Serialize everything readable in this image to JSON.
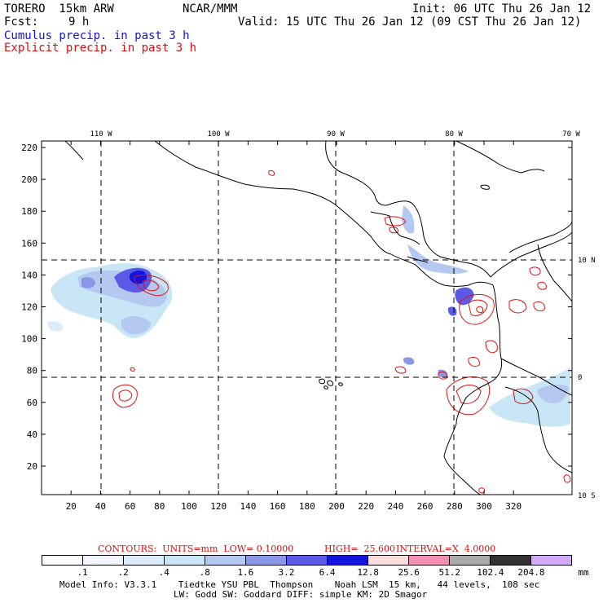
{
  "header": {
    "model_name": "TORERO  15km ARW",
    "org": "NCAR/MMM",
    "init": "Init: 06 UTC Thu 26 Jan 12",
    "fcst_label": "Fcst:",
    "fcst_value": "9 h",
    "valid": "Valid: 15 UTC Thu 26 Jan 12 (09 CST Thu 26 Jan 12)",
    "field1": "Cumulus precip. in past 3 h",
    "field2": "Explicit precip. in past 3 h"
  },
  "colors": {
    "field1": "#1414c8",
    "field2": "#e01010",
    "gridline": "#000000",
    "coast": "#000000"
  },
  "map": {
    "lon_labels": [
      "110 W",
      "100 W",
      "90 W",
      "80 W",
      "70 W"
    ],
    "lat_labels": [
      "10 N",
      "0",
      "10 S"
    ],
    "x_ticks": [
      "20",
      "40",
      "60",
      "80",
      "100",
      "120",
      "140",
      "160",
      "180",
      "200",
      "220",
      "240",
      "260",
      "280",
      "300",
      "320"
    ],
    "y_ticks": [
      "220",
      "200",
      "180",
      "160",
      "140",
      "120",
      "100",
      "80",
      "60",
      "40",
      "20"
    ]
  },
  "contour_info": {
    "units": "CONTOURS:  UNITS=mm  LOW= 0.10000",
    "high": "HIGH=  25.600",
    "interval": "INTERVAL=X  4.0000"
  },
  "colorbar": {
    "unit": "mm",
    "labels": [
      ".1",
      ".2",
      ".4",
      ".8",
      "1.6",
      "3.2",
      "6.4",
      "12.8",
      "25.6",
      "51.2",
      "102.4",
      "204.8"
    ],
    "colors": [
      "#ffffff",
      "#f0f5ff",
      "#dcebfa",
      "#c8e6f5",
      "#b4c8f0",
      "#8c96e6",
      "#5a5ae6",
      "#1414dc",
      "#fadcdc",
      "#f090b4",
      "#aaaaaa",
      "#323232",
      "#d2aaf5"
    ]
  },
  "footer": {
    "line1": "Model Info: V3.3.1    Tiedtke YSU PBL  Thompson    Noah LSM  15 km,   44 levels,  108 sec",
    "line2": "LW: Godd SW: Goddard DIFF: simple KM: 2D Smagor"
  }
}
